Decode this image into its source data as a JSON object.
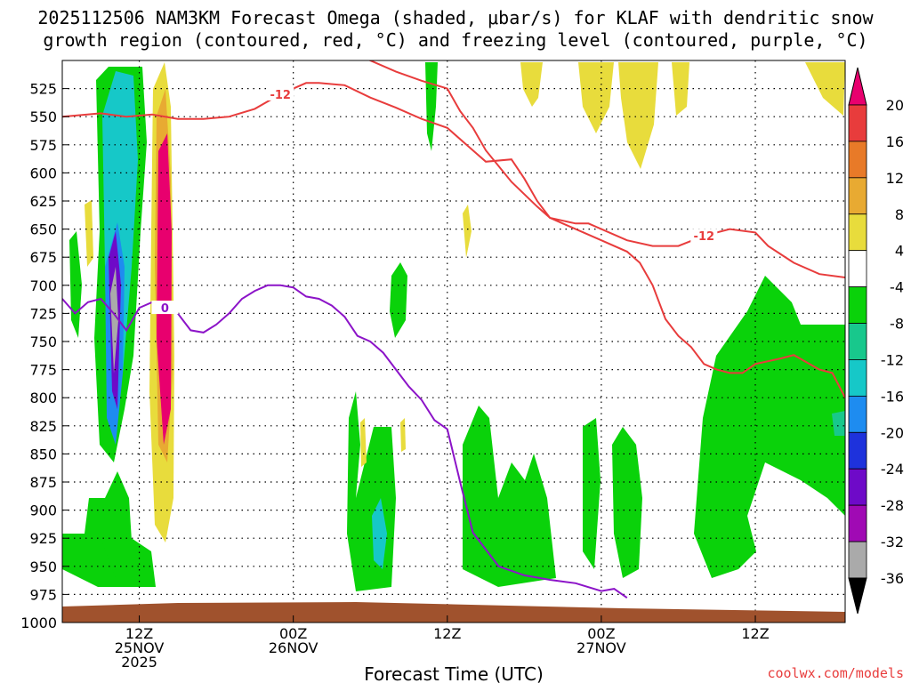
{
  "chart_data": {
    "type": "heatmap",
    "title_line1": "2025112506 NAM3KM Forecast Omega (shaded, μbar/s) for KLAF with dendritic snow",
    "title_line2": "growth region (contoured, red, °C) and freezing level (contoured, purple, °C)",
    "xlabel": "Forecast Time (UTC)",
    "credit": "coolwx.com/models",
    "y_ticks": [
      "525",
      "550",
      "575",
      "600",
      "625",
      "650",
      "675",
      "700",
      "725",
      "750",
      "775",
      "800",
      "825",
      "850",
      "875",
      "900",
      "925",
      "950",
      "975",
      "1000"
    ],
    "ylim": [
      500,
      1000
    ],
    "x_ticks": [
      {
        "hour": 6,
        "line1": "12Z",
        "line2": "25NOV",
        "line3": "2025"
      },
      {
        "hour": 18,
        "line1": "00Z",
        "line2": "26NOV",
        "line3": ""
      },
      {
        "hour": 30,
        "line1": "12Z",
        "line2": "",
        "line3": ""
      },
      {
        "hour": 42,
        "line1": "00Z",
        "line2": "27NOV",
        "line3": ""
      },
      {
        "hour": 54,
        "line1": "12Z",
        "line2": "",
        "line3": ""
      }
    ],
    "xlim": [
      0,
      61
    ],
    "colorbar_labels": [
      "20",
      "16",
      "12",
      "8",
      "4",
      "-4",
      "-8",
      "-12",
      "-16",
      "-20",
      "-24",
      "-28",
      "-32",
      "-36"
    ],
    "colorbar_colors": [
      "#e8006e",
      "#e83c3c",
      "#e87a28",
      "#e8aa32",
      "#e8dc3c",
      "#ffffff",
      "#0ad20a",
      "#18c88c",
      "#16c8c8",
      "#1e8cf0",
      "#1e32dc",
      "#6e0ac8",
      "#a00ab4",
      "#aaaaaa"
    ],
    "contours": [
      {
        "name": "-12 C (top)",
        "color": "#e83c3c",
        "label": "-12",
        "points": [
          [
            0,
            550
          ],
          [
            3,
            547
          ],
          [
            5,
            550
          ],
          [
            7,
            548
          ],
          [
            9,
            552
          ],
          [
            11,
            552
          ],
          [
            13,
            550
          ],
          [
            15,
            543
          ],
          [
            17,
            530
          ],
          [
            19,
            520
          ],
          [
            20,
            520
          ],
          [
            22,
            522
          ],
          [
            24,
            533
          ],
          [
            26,
            542
          ],
          [
            28,
            552
          ],
          [
            30,
            560
          ],
          [
            32,
            580
          ],
          [
            33,
            590
          ],
          [
            35,
            588
          ],
          [
            36,
            605
          ],
          [
            37,
            625
          ],
          [
            38,
            640
          ],
          [
            39,
            645
          ],
          [
            40,
            650
          ],
          [
            42,
            660
          ],
          [
            44,
            670
          ],
          [
            45,
            680
          ],
          [
            46,
            700
          ],
          [
            47,
            730
          ],
          [
            48,
            745
          ],
          [
            49,
            755
          ],
          [
            50,
            770
          ],
          [
            51,
            775
          ],
          [
            52,
            778
          ],
          [
            53,
            778
          ],
          [
            54,
            770
          ],
          [
            56,
            765
          ],
          [
            57,
            762
          ],
          [
            59,
            775
          ],
          [
            60,
            778
          ],
          [
            61,
            800
          ]
        ]
      },
      {
        "name": "-12 C (lower)",
        "color": "#e83c3c",
        "label": "-12",
        "points": [
          [
            23,
            495
          ],
          [
            26,
            510
          ],
          [
            28,
            518
          ],
          [
            30,
            525
          ],
          [
            31,
            545
          ],
          [
            32,
            560
          ],
          [
            33,
            580
          ],
          [
            35,
            608
          ],
          [
            37,
            630
          ],
          [
            38,
            640
          ],
          [
            40,
            645
          ],
          [
            41,
            645
          ],
          [
            42,
            650
          ],
          [
            44,
            660
          ],
          [
            46,
            665
          ],
          [
            48,
            665
          ],
          [
            50,
            656
          ],
          [
            52,
            650
          ],
          [
            54,
            653
          ],
          [
            55,
            665
          ],
          [
            57,
            680
          ],
          [
            59,
            690
          ],
          [
            61,
            693
          ]
        ]
      },
      {
        "name": "0 C freezing level",
        "color": "#8c14c8",
        "label": "0",
        "points": [
          [
            0,
            712
          ],
          [
            1,
            725
          ],
          [
            2,
            715
          ],
          [
            3,
            712
          ],
          [
            4,
            725
          ],
          [
            5,
            740
          ],
          [
            6,
            720
          ],
          [
            7,
            715
          ],
          [
            8,
            720
          ],
          [
            9,
            725
          ],
          [
            10,
            740
          ],
          [
            11,
            742
          ],
          [
            12,
            735
          ],
          [
            13,
            725
          ],
          [
            14,
            712
          ],
          [
            15,
            705
          ],
          [
            16,
            700
          ],
          [
            17,
            700
          ],
          [
            18,
            702
          ],
          [
            19,
            710
          ],
          [
            20,
            712
          ],
          [
            21,
            718
          ],
          [
            22,
            728
          ],
          [
            23,
            745
          ],
          [
            24,
            750
          ],
          [
            25,
            760
          ],
          [
            26,
            775
          ],
          [
            27,
            790
          ],
          [
            28,
            802
          ],
          [
            29,
            820
          ],
          [
            30,
            828
          ],
          [
            31,
            875
          ],
          [
            32,
            920
          ],
          [
            34,
            950
          ],
          [
            36,
            958
          ],
          [
            38,
            962
          ],
          [
            40,
            965
          ],
          [
            42,
            972
          ],
          [
            43,
            970
          ],
          [
            44,
            978
          ]
        ]
      }
    ]
  }
}
